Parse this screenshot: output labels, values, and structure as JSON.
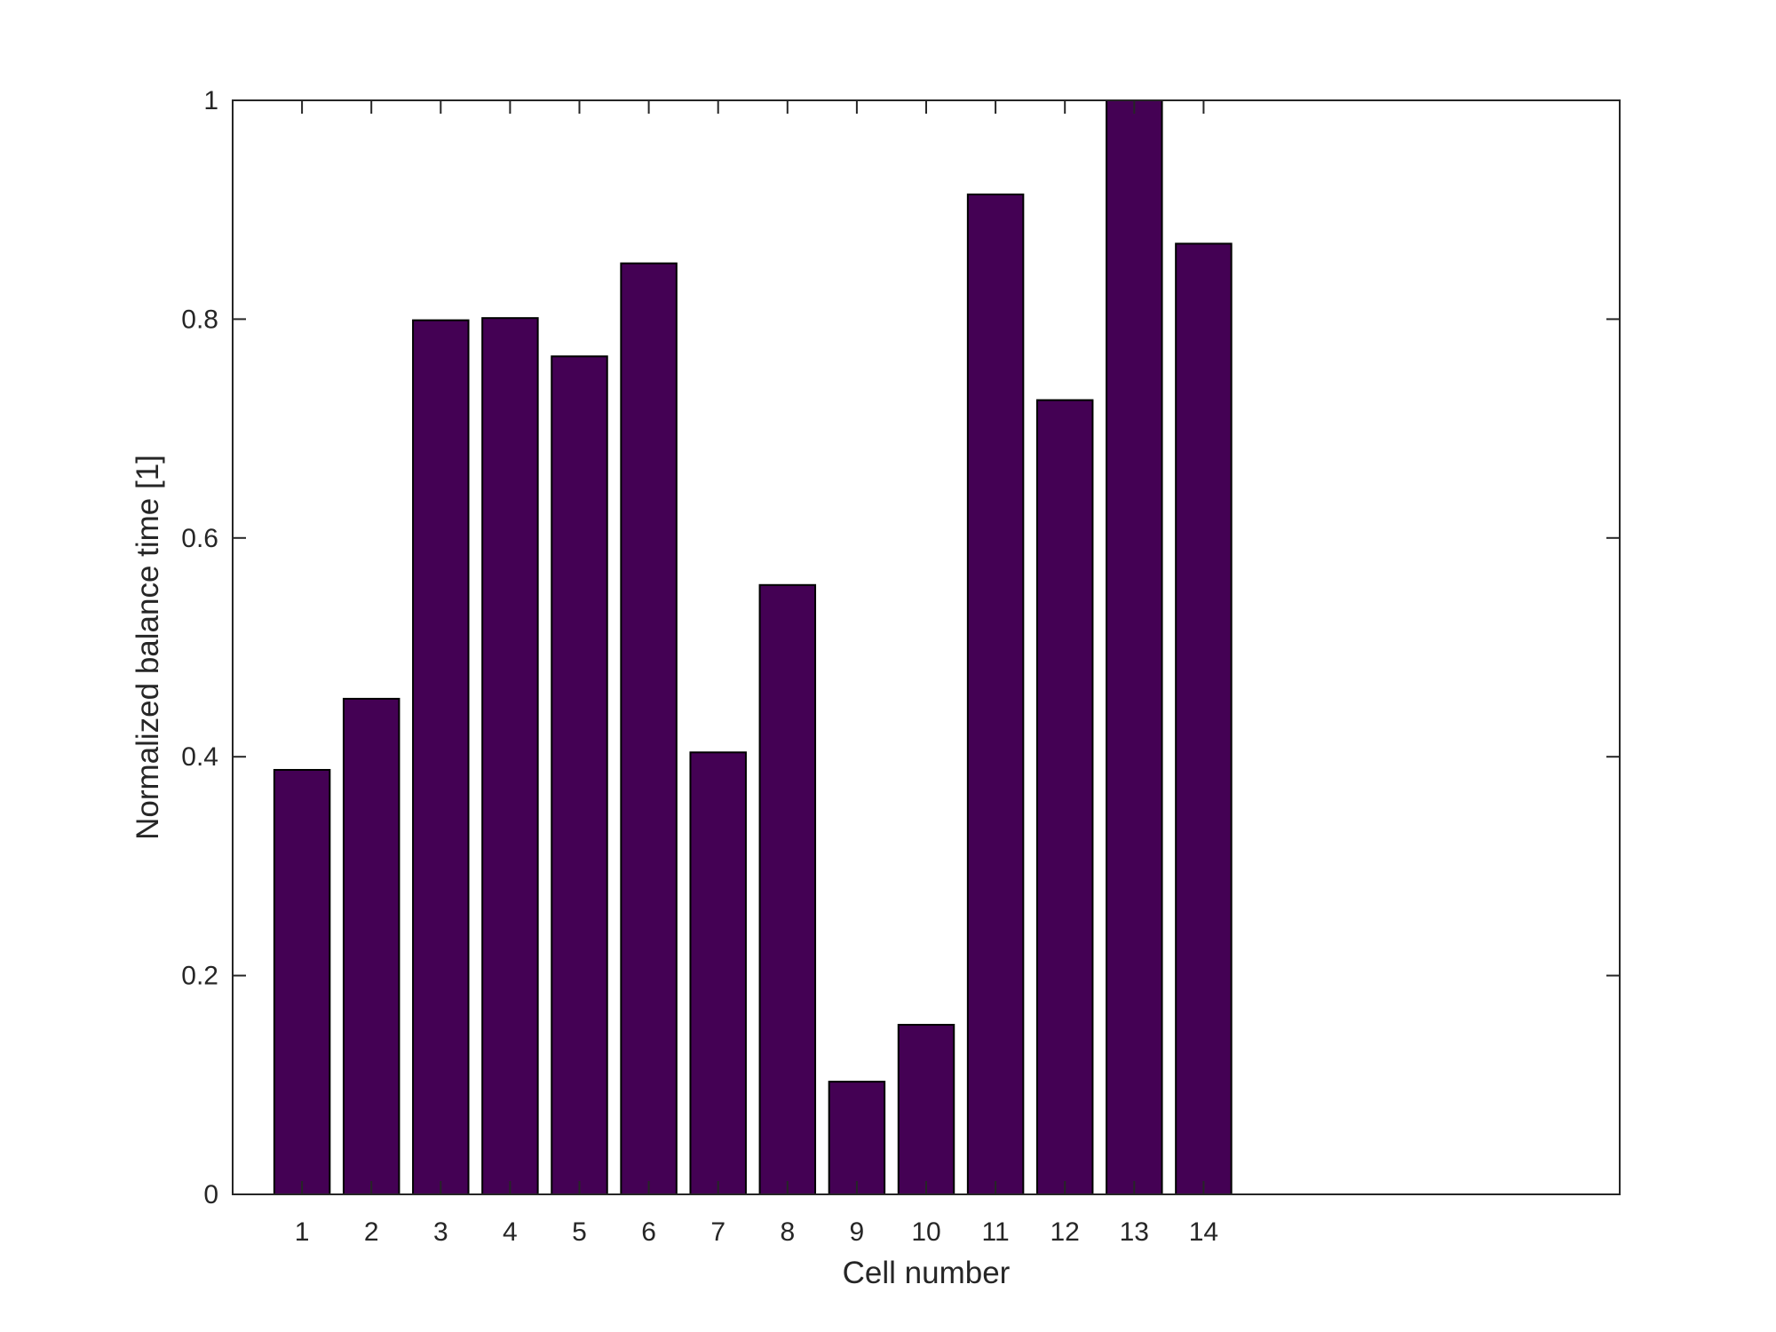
{
  "chart_data": {
    "type": "bar",
    "title": "",
    "xlabel": "Cell number",
    "ylabel": "Normalized balance time [1]",
    "categories": [
      "1",
      "2",
      "3",
      "4",
      "5",
      "6",
      "7",
      "8",
      "9",
      "10",
      "11",
      "12",
      "13",
      "14"
    ],
    "values": [
      0.388,
      0.453,
      0.799,
      0.801,
      0.766,
      0.851,
      0.404,
      0.557,
      0.103,
      0.155,
      0.914,
      0.726,
      1.0,
      0.869
    ],
    "xlim": [
      0,
      20
    ],
    "ylim": [
      0,
      1
    ],
    "yticks": [
      "0",
      "0.2",
      "0.4",
      "0.6",
      "0.8",
      "1"
    ],
    "yticks_values": [
      0,
      0.2,
      0.4,
      0.6,
      0.8,
      1
    ],
    "grid": false,
    "legend": "none",
    "colors": {
      "bar": "#440154",
      "edge": "#000000",
      "axis": "#262626"
    }
  }
}
